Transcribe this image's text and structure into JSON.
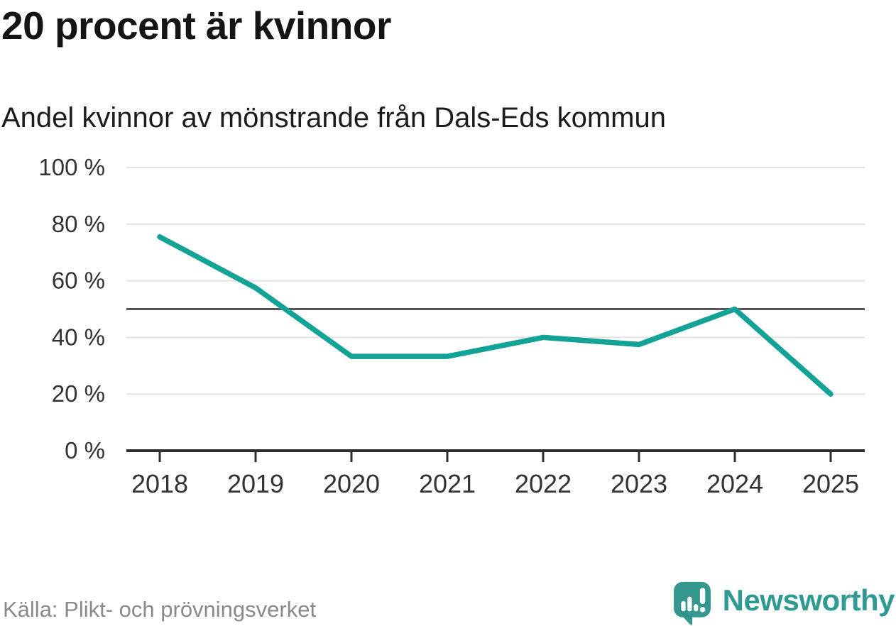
{
  "header": {
    "title": "20 procent är kvinnor",
    "subtitle": "Andel kvinnor av mönstrande från Dals-Eds kommun"
  },
  "footer": {
    "source": "Källa: Plikt- och prövningsverket",
    "brand": "Newsworthy"
  },
  "colors": {
    "line": "#12a296",
    "grid": "#e2e2e2",
    "reference_line": "#58585b",
    "axis": "#2e2e2e",
    "tick_text": "#333333",
    "title_text": "#141413",
    "source_text": "#8a8a8a",
    "brand_teal": "#2e9a92"
  },
  "chart_data": {
    "type": "line",
    "title": "20 procent är kvinnor",
    "subtitle": "Andel kvinnor av mönstrande från Dals-Eds kommun",
    "categories": [
      "2018",
      "2019",
      "2020",
      "2021",
      "2022",
      "2023",
      "2024",
      "2025"
    ],
    "series": [
      {
        "name": "Andel kvinnor av mönstrande",
        "values": [
          75.5,
          57.5,
          33.3,
          33.3,
          40,
          37.5,
          50,
          20
        ]
      }
    ],
    "xlabel": "",
    "ylabel": "",
    "ylim": [
      0,
      100
    ],
    "yticks": [
      0,
      20,
      40,
      60,
      80,
      100
    ],
    "ytick_format": "{v} %",
    "reference_line": {
      "value": 50
    },
    "grid": "horizontal",
    "legend": "none",
    "line_color": "#12a296"
  }
}
